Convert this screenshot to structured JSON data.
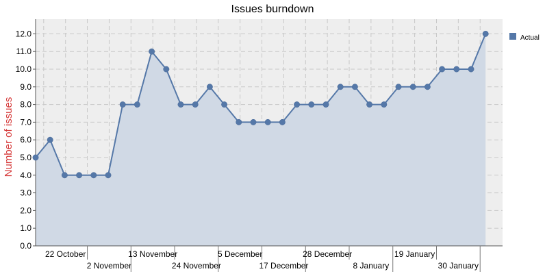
{
  "chart_data": {
    "type": "area",
    "title": "Issues burndown",
    "ylabel": "Number of issues",
    "xlabel": "",
    "ylim": [
      0,
      12.6
    ],
    "y_ticks": [
      "0.0",
      "1.0",
      "2.0",
      "3.0",
      "4.0",
      "5.0",
      "6.0",
      "7.0",
      "8.0",
      "9.0",
      "10.0",
      "11.0",
      "12.0"
    ],
    "x_tick_labels": [
      "22 October",
      "2 November",
      "13 November",
      "24 November",
      "5 December",
      "17 December",
      "28 December",
      "8 January",
      "19 January",
      "30 January"
    ],
    "grid": true,
    "legend_position": "top-right",
    "colors": {
      "series": "#5578a8",
      "fill": "#d0d9e5",
      "plot_bg": "#eeeeee",
      "ylabel": "#d63a3a"
    },
    "series": [
      {
        "name": "Actual",
        "values": [
          5,
          6,
          4,
          4,
          4,
          4,
          8,
          8,
          11,
          10,
          8,
          8,
          9,
          8,
          7,
          7,
          7,
          7,
          8,
          8,
          8,
          9,
          9,
          8,
          8,
          9,
          9,
          9,
          10,
          10,
          10,
          12
        ]
      }
    ]
  }
}
